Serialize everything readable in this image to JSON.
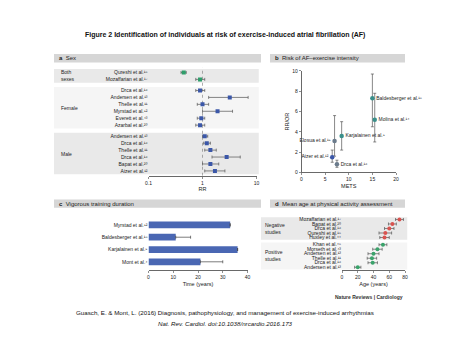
{
  "title": "Figure 2 Identification of individuals at risk of exercise-induced atrial fibrillation (AF)",
  "source_label": "Nature Reviews | Cardiology",
  "citation": [
    "Guasch, E. & Mont, L. (2016) Diagnosis, pathophysiology, and management of exercise-induced arrhythmias",
    "Nat. Rev. Cardiol. doi:10.1038/nrcardio.2016.173"
  ],
  "chart_data": [
    {
      "type": "forest",
      "label": "a",
      "title": "Sex",
      "categories": [
        "Qureshi et al.¹⁵",
        "Mozaffarian et al.¹⁷",
        "Drca et al.¹⁶",
        "Andersen et al.¹³",
        "Thelle et al.¹¹",
        "Myrstad et al.⁹²",
        "Everett et al.⁴³",
        "Azarbal et al.²⁰",
        "Andersen et al.¹³",
        "Drca et al.¹⁶",
        "Thelle et al.¹¹",
        "Drca et al.¹⁶",
        "Bapat et al.²⁰",
        "Aizer et al.¹²"
      ],
      "groups": [
        "Both sexes",
        "Both sexes",
        "Female",
        "Female",
        "Female",
        "Female",
        "Female",
        "Female",
        "Male",
        "Male",
        "Male",
        "Male",
        "Male",
        "Male"
      ],
      "values": [
        0.45,
        0.9,
        0.9,
        3.2,
        1.0,
        1.9,
        0.95,
        0.9,
        1.1,
        1.2,
        1.4,
        2.8,
        1.4,
        1.7
      ],
      "ci_low": [
        0.4,
        0.75,
        0.75,
        1.3,
        0.8,
        1.0,
        0.8,
        0.75,
        1.0,
        1.05,
        1.1,
        1.5,
        1.0,
        1.1
      ],
      "ci_high": [
        0.5,
        1.1,
        1.1,
        7.0,
        1.3,
        3.6,
        1.1,
        1.1,
        1.25,
        1.4,
        1.8,
        5.0,
        2.0,
        2.6
      ],
      "colors": [
        "#2e9e6b",
        "#2e9e6b",
        "#3b57a8",
        "#3b57a8",
        "#3b57a8",
        "#3b57a8",
        "#3b57a8",
        "#3b57a8",
        "#3b57a8",
        "#3b57a8",
        "#3b57a8",
        "#3b57a8",
        "#3b57a8",
        "#3b57a8"
      ],
      "reference_line": 1,
      "xlabel": "RR",
      "log": "x",
      "xlim": [
        0.1,
        10
      ],
      "xticks": [
        0.1,
        1,
        10
      ]
    },
    {
      "type": "scatter",
      "label": "b",
      "title": "Risk of AF–exercise intensity",
      "labels": [
        "Baldesberger et al.¹⁸",
        "Molina et al.¹⁴",
        "Elosua et al.¹⁹",
        "Karjalainen et al.⁹",
        "Aizer et al.¹²",
        "Drca et al.¹⁶"
      ],
      "x": [
        15,
        15.5,
        7,
        8.5,
        6.5,
        7.5
      ],
      "values": [
        7.3,
        5.2,
        3.1,
        3.6,
        1.5,
        0.8
      ],
      "ci_low": [
        4.5,
        3.0,
        1.6,
        2.2,
        1.0,
        0.5
      ],
      "ci_high": [
        9.7,
        7.8,
        5.6,
        5.0,
        2.2,
        1.2
      ],
      "colors": [
        "#3a8f8a",
        "#3a8f8a",
        "#6b7b8c",
        "#3a8f8a",
        "#3b57a8",
        "#6b7b8c"
      ],
      "xlabel": "METS",
      "ylabel": "RR/OR",
      "xlim": [
        0,
        20
      ],
      "xticks": [
        0,
        5,
        10,
        15,
        20
      ],
      "ylim": [
        0,
        10
      ],
      "yticks": [
        0,
        2,
        4,
        6,
        8,
        10
      ]
    },
    {
      "type": "bar",
      "label": "c",
      "title": "Vigorous training duration",
      "orientation": "horizontal",
      "categories": [
        "Myrstad et al.⁹²",
        "Baldesberger et al.¹⁸",
        "Karjalainen et al.⁹",
        "Mont et al.⁴"
      ],
      "values": [
        33,
        11,
        36,
        21
      ],
      "error_plus": [
        null,
        6,
        null,
        9
      ],
      "color": "#4a67b3",
      "xlabel": "Time (years)",
      "xlim": [
        0,
        40
      ],
      "xticks": [
        0,
        10,
        20,
        30,
        40
      ]
    },
    {
      "type": "dot",
      "label": "d",
      "title": "Mean age at physical activity assessment",
      "categories": [
        "Mozaffarian et al.¹⁷",
        "Bapat et al.²⁰",
        "Drca et al.¹⁶",
        "Qureshi et al.¹⁵",
        "Huxley et al.⁴⁴",
        "Khan et al.⁴⁵",
        "Morseth et al.⁴³",
        "Andersen et al.¹³",
        "Thelle et al.¹¹",
        "Drca et al.¹⁶",
        "Andersen et al.¹³"
      ],
      "groups": [
        "Negative studies",
        "Negative studies",
        "Negative studies",
        "Negative studies",
        "Negative studies",
        "Positive studies",
        "Positive studies",
        "Positive studies",
        "Positive studies",
        "Positive studies",
        "Positive studies"
      ],
      "values": [
        73,
        64,
        60,
        55,
        54,
        52,
        45,
        40,
        38,
        39,
        20
      ],
      "error": [
        5,
        5,
        6,
        8,
        6,
        5,
        6,
        7,
        6,
        6,
        4
      ],
      "colors": [
        "#d9534f",
        "#d9534f",
        "#d9534f",
        "#d9534f",
        "#d9534f",
        "#3aa36b",
        "#3aa36b",
        "#3aa36b",
        "#3aa36b",
        "#3aa36b",
        "#3aa36b"
      ],
      "xlabel": "Age (years)",
      "xlim": [
        0,
        80
      ],
      "xticks": [
        0,
        20,
        40,
        60,
        80
      ]
    }
  ]
}
